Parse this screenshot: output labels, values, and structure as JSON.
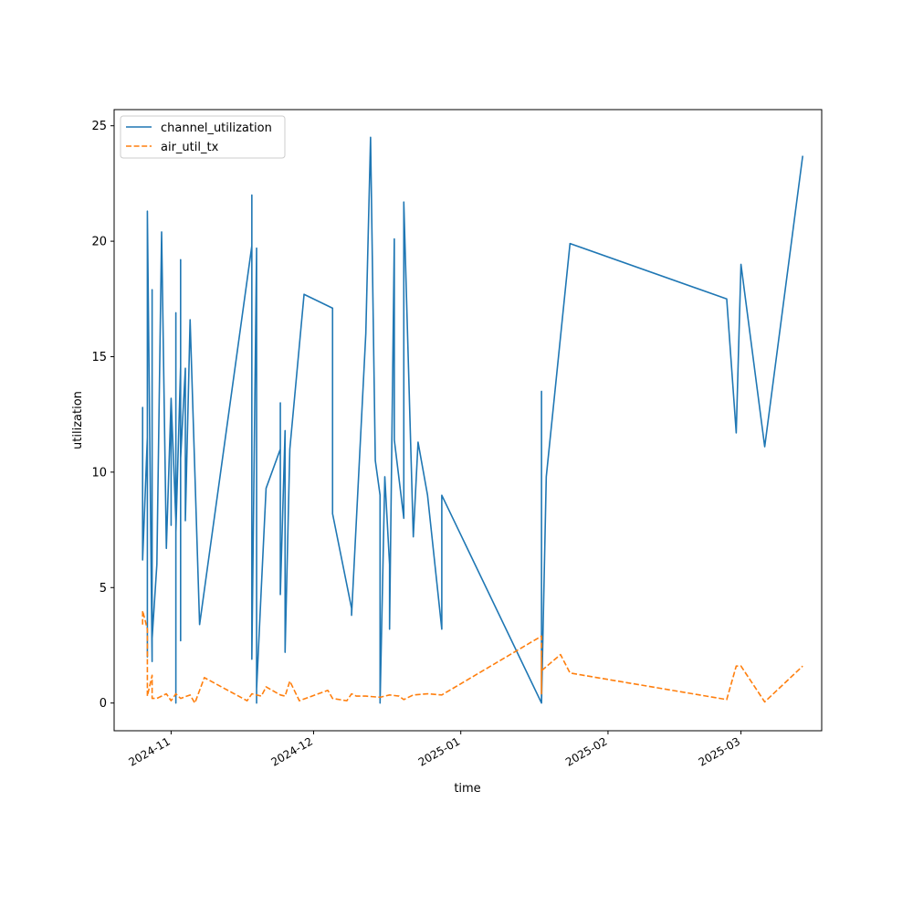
{
  "chart_data": {
    "type": "line",
    "title": "",
    "xlabel": "time",
    "ylabel": "utilization",
    "x_type": "date",
    "xlim": [
      "2024-10-20",
      "2025-03-18"
    ],
    "ylim": [
      -1.2,
      25.7
    ],
    "yticks": [
      0,
      5,
      10,
      15,
      20,
      25
    ],
    "xticks": [
      "2024-11-01",
      "2024-12-01",
      "2025-01-01",
      "2025-02-01",
      "2025-03-01"
    ],
    "xtick_labels": [
      "2024-11",
      "2024-12",
      "2025-01",
      "2025-02",
      "2025-03"
    ],
    "grid": false,
    "legend_position": "top-left",
    "series": [
      {
        "name": "channel_utilization",
        "color": "#1f77b4",
        "style": "solid",
        "points": [
          [
            "2024-10-26",
            8.4
          ],
          [
            "2024-10-26",
            12.8
          ],
          [
            "2024-10-26",
            6.2
          ],
          [
            "2024-10-27",
            11.5
          ],
          [
            "2024-10-27",
            6.0
          ],
          [
            "2024-10-27",
            13.2
          ],
          [
            "2024-10-27",
            2.0
          ],
          [
            "2024-10-27",
            21.3
          ],
          [
            "2024-10-28",
            1.8
          ],
          [
            "2024-10-28",
            11.0
          ],
          [
            "2024-10-28",
            17.9
          ],
          [
            "2024-10-28",
            2.8
          ],
          [
            "2024-10-29",
            6.0
          ],
          [
            "2024-10-30",
            20.4
          ],
          [
            "2024-10-31",
            6.7
          ],
          [
            "2024-11-01",
            13.2
          ],
          [
            "2024-11-01",
            7.7
          ],
          [
            "2024-11-01",
            13.2
          ],
          [
            "2024-11-02",
            7.9
          ],
          [
            "2024-11-02",
            0.0
          ],
          [
            "2024-11-02",
            16.9
          ],
          [
            "2024-11-02",
            12.0
          ],
          [
            "2024-11-02",
            16.1
          ],
          [
            "2024-11-02",
            7.4
          ],
          [
            "2024-11-03",
            14.6
          ],
          [
            "2024-11-03",
            2.7
          ],
          [
            "2024-11-03",
            19.2
          ],
          [
            "2024-11-03",
            10.6
          ],
          [
            "2024-11-04",
            14.5
          ],
          [
            "2024-11-04",
            7.9
          ],
          [
            "2024-11-05",
            16.6
          ],
          [
            "2024-11-07",
            3.4
          ],
          [
            "2024-11-18",
            19.8
          ],
          [
            "2024-11-18",
            22.0
          ],
          [
            "2024-11-18",
            1.9
          ],
          [
            "2024-11-19",
            19.7
          ],
          [
            "2024-11-19",
            0.0
          ],
          [
            "2024-11-19",
            3.0
          ],
          [
            "2024-11-19",
            0.6
          ],
          [
            "2024-11-20",
            5.0
          ],
          [
            "2024-11-21",
            9.3
          ],
          [
            "2024-11-24",
            11.0
          ],
          [
            "2024-11-24",
            13.0
          ],
          [
            "2024-11-24",
            4.7
          ],
          [
            "2024-11-25",
            11.8
          ],
          [
            "2024-11-25",
            2.2
          ],
          [
            "2024-11-26",
            11.0
          ],
          [
            "2024-11-29",
            17.7
          ],
          [
            "2024-12-05",
            17.1
          ],
          [
            "2024-12-05",
            8.2
          ],
          [
            "2024-12-09",
            4.1
          ],
          [
            "2024-12-09",
            3.8
          ],
          [
            "2024-12-12",
            16.0
          ],
          [
            "2024-12-13",
            24.5
          ],
          [
            "2024-12-14",
            10.5
          ],
          [
            "2024-12-15",
            9.0
          ],
          [
            "2024-12-15",
            0.0
          ],
          [
            "2024-12-16",
            9.8
          ],
          [
            "2024-12-17",
            6.0
          ],
          [
            "2024-12-17",
            3.2
          ],
          [
            "2024-12-18",
            20.1
          ],
          [
            "2024-12-18",
            11.4
          ],
          [
            "2024-12-20",
            8.0
          ],
          [
            "2024-12-20",
            21.7
          ],
          [
            "2024-12-22",
            7.2
          ],
          [
            "2024-12-23",
            11.3
          ],
          [
            "2024-12-25",
            9.0
          ],
          [
            "2024-12-28",
            3.2
          ],
          [
            "2024-12-28",
            9.0
          ],
          [
            "2025-01-18",
            0.0
          ],
          [
            "2025-01-18",
            13.5
          ],
          [
            "2025-01-18",
            0.0
          ],
          [
            "2025-01-18",
            12.5
          ],
          [
            "2025-01-18",
            0.0
          ],
          [
            "2025-01-19",
            9.8
          ],
          [
            "2025-01-24",
            19.9
          ],
          [
            "2025-02-26",
            17.5
          ],
          [
            "2025-02-28",
            11.7
          ],
          [
            "2025-03-01",
            19.0
          ],
          [
            "2025-03-06",
            11.1
          ],
          [
            "2025-03-14",
            23.7
          ]
        ]
      },
      {
        "name": "air_util_tx",
        "color": "#ff7f0e",
        "style": "dashed",
        "points": [
          [
            "2024-10-26",
            3.4
          ],
          [
            "2024-10-26",
            4.0
          ],
          [
            "2024-10-27",
            3.2
          ],
          [
            "2024-10-27",
            0.3
          ],
          [
            "2024-10-28",
            1.2
          ],
          [
            "2024-10-28",
            0.2
          ],
          [
            "2024-10-29",
            0.2
          ],
          [
            "2024-10-31",
            0.4
          ],
          [
            "2024-11-01",
            0.1
          ],
          [
            "2024-11-02",
            0.4
          ],
          [
            "2024-11-03",
            0.2
          ],
          [
            "2024-11-05",
            0.35
          ],
          [
            "2024-11-06",
            0.0
          ],
          [
            "2024-11-08",
            1.1
          ],
          [
            "2024-11-17",
            0.1
          ],
          [
            "2024-11-18",
            0.4
          ],
          [
            "2024-11-20",
            0.3
          ],
          [
            "2024-11-21",
            0.7
          ],
          [
            "2024-11-24",
            0.35
          ],
          [
            "2024-11-25",
            0.3
          ],
          [
            "2024-11-26",
            0.95
          ],
          [
            "2024-11-28",
            0.1
          ],
          [
            "2024-12-04",
            0.55
          ],
          [
            "2024-12-05",
            0.2
          ],
          [
            "2024-12-08",
            0.1
          ],
          [
            "2024-12-09",
            0.4
          ],
          [
            "2024-12-10",
            0.3
          ],
          [
            "2024-12-12",
            0.3
          ],
          [
            "2024-12-15",
            0.25
          ],
          [
            "2024-12-17",
            0.35
          ],
          [
            "2024-12-19",
            0.3
          ],
          [
            "2024-12-20",
            0.15
          ],
          [
            "2024-12-22",
            0.35
          ],
          [
            "2024-12-25",
            0.4
          ],
          [
            "2024-12-28",
            0.35
          ],
          [
            "2025-01-18",
            2.9
          ],
          [
            "2025-01-18",
            0.4
          ],
          [
            "2025-01-18",
            2.0
          ],
          [
            "2025-01-18",
            1.4
          ],
          [
            "2025-01-22",
            2.1
          ],
          [
            "2025-01-24",
            1.3
          ],
          [
            "2025-02-26",
            0.15
          ],
          [
            "2025-02-28",
            1.6
          ],
          [
            "2025-03-01",
            1.6
          ],
          [
            "2025-03-06",
            0.05
          ],
          [
            "2025-03-14",
            1.6
          ]
        ]
      }
    ]
  }
}
